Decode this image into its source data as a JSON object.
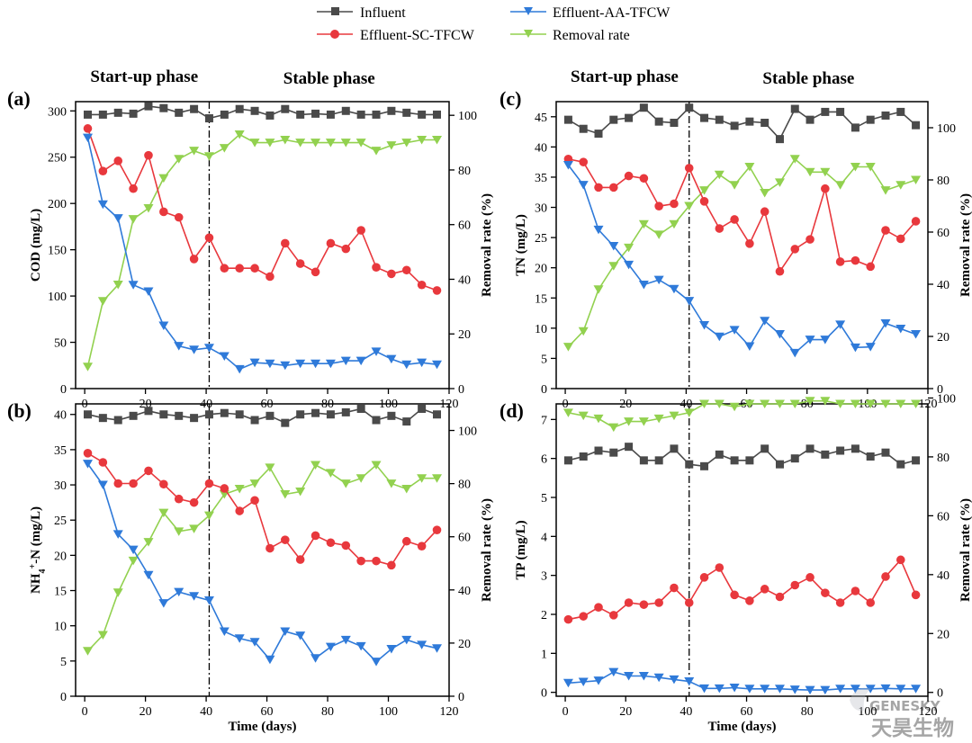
{
  "legend": {
    "influent": "Influent",
    "effluent_aa": "Effluent-AA-TFCW",
    "effluent_sc": "Effluent-SC-TFCW",
    "removal": "Removal rate"
  },
  "colors": {
    "influent": "#4a4a4a",
    "effluent_aa": "#2f7ad9",
    "effluent_sc": "#e8383d",
    "removal": "#92d14f"
  },
  "phases": {
    "startup": "Start-up phase",
    "stable": "Stable phase"
  },
  "phase_boundary_day": 41,
  "watermark": {
    "brand_en": "GENESKY",
    "brand_cn": "天昊生物"
  },
  "chart_data": [
    {
      "panel": "(a)",
      "type": "line",
      "xlabel": "",
      "ylabel": "COD (mg/L)",
      "ylabel_right": "Removal rate (%)",
      "xlim": [
        -3,
        120
      ],
      "xticks": [
        0,
        20,
        40,
        60,
        80,
        100,
        120
      ],
      "xtick_labels": [
        "0",
        "20",
        "40",
        "60",
        "80",
        "100",
        "120"
      ],
      "ylim": [
        0,
        310
      ],
      "yticks": [
        0,
        50,
        100,
        150,
        200,
        250,
        300
      ],
      "ylim_right": [
        0,
        105
      ],
      "yticks_right": [
        0,
        20,
        40,
        60,
        80,
        100
      ],
      "show_top_phases": true,
      "x": [
        1,
        6,
        11,
        16,
        21,
        26,
        31,
        36,
        41,
        46,
        51,
        56,
        61,
        66,
        71,
        76,
        81,
        86,
        91,
        96,
        101,
        106,
        111,
        116
      ],
      "series": [
        {
          "key": "influent",
          "marker": "square",
          "values": [
            296,
            296,
            298,
            297,
            305,
            303,
            298,
            302,
            292,
            296,
            302,
            300,
            295,
            302,
            296,
            297,
            296,
            300,
            296,
            296,
            300,
            298,
            296,
            296
          ]
        },
        {
          "key": "effluent_sc",
          "marker": "circle",
          "values": [
            281,
            235,
            246,
            216,
            252,
            191,
            185,
            140,
            163,
            130,
            130,
            130,
            121,
            157,
            135,
            126,
            157,
            151,
            171,
            131,
            124,
            128,
            112,
            106
          ]
        },
        {
          "key": "effluent_aa",
          "marker": "triangle",
          "values": [
            271,
            199,
            184,
            112,
            105,
            68,
            46,
            42,
            44,
            35,
            21,
            28,
            27,
            25,
            27,
            27,
            27,
            30,
            30,
            40,
            32,
            26,
            28,
            26
          ]
        },
        {
          "key": "removal",
          "marker": "triangle",
          "axis": "right",
          "values": [
            8,
            32,
            38,
            62,
            66,
            77,
            84,
            87,
            85,
            88,
            93,
            90,
            90,
            91,
            90,
            90,
            90,
            90,
            90,
            87,
            89,
            90,
            91,
            91
          ]
        }
      ]
    },
    {
      "panel": "(b)",
      "type": "line",
      "xlabel": "Time (days)",
      "ylabel": "NH4+-N (mg/L)",
      "ylabel_right": "Removal rate (%)",
      "xlim": [
        -3,
        120
      ],
      "xticks": [
        0,
        20,
        40,
        60,
        80,
        100,
        120
      ],
      "xtick_labels": [
        "0",
        "20",
        "40",
        "60",
        "80",
        "100",
        "120"
      ],
      "ylim": [
        0,
        41.5
      ],
      "yticks": [
        0,
        5,
        10,
        15,
        20,
        25,
        30,
        35,
        40
      ],
      "ylim_right": [
        0,
        110
      ],
      "yticks_right": [
        0,
        20,
        40,
        60,
        80,
        100
      ],
      "show_top_phases": false,
      "x": [
        1,
        6,
        11,
        16,
        21,
        26,
        31,
        36,
        41,
        46,
        51,
        56,
        61,
        66,
        71,
        76,
        81,
        86,
        91,
        96,
        101,
        106,
        111,
        116
      ],
      "series": [
        {
          "key": "influent",
          "marker": "square",
          "values": [
            40.0,
            39.5,
            39.2,
            39.8,
            40.5,
            40.0,
            39.8,
            39.5,
            40.0,
            40.2,
            40.0,
            39.2,
            39.8,
            38.8,
            40.0,
            40.2,
            40.0,
            40.3,
            40.8,
            39.2,
            39.8,
            39.0,
            40.8,
            40.0
          ]
        },
        {
          "key": "effluent_sc",
          "marker": "circle",
          "values": [
            34.5,
            33.2,
            30.2,
            30.2,
            32.0,
            30.1,
            28.0,
            27.5,
            30.2,
            29.5,
            26.3,
            27.8,
            21.0,
            22.2,
            19.4,
            22.8,
            21.8,
            21.4,
            19.2,
            19.2,
            18.6,
            22.0,
            21.3,
            23.6
          ]
        },
        {
          "key": "effluent_aa",
          "marker": "triangle",
          "values": [
            33.0,
            30.0,
            23.0,
            20.8,
            17.2,
            13.2,
            14.8,
            14.2,
            13.6,
            9.2,
            8.2,
            7.7,
            5.2,
            9.2,
            8.6,
            5.4,
            7.0,
            8.0,
            7.1,
            4.9,
            6.7,
            8.0,
            7.3,
            6.8
          ]
        },
        {
          "key": "removal",
          "marker": "triangle",
          "axis": "right",
          "values": [
            17,
            23,
            39,
            51,
            58,
            69,
            62,
            63,
            68,
            76,
            78,
            80,
            86,
            76,
            77,
            87,
            84,
            80,
            82,
            87,
            80,
            78,
            82,
            82
          ]
        }
      ]
    },
    {
      "panel": "(c)",
      "type": "line",
      "xlabel": "",
      "ylabel": "TN (mg/L)",
      "ylabel_right": "Removal rate (%)",
      "xlim": [
        -3,
        120
      ],
      "xticks": [
        0,
        20,
        40,
        60,
        80,
        100,
        120
      ],
      "xtick_labels": [
        "0",
        "20",
        "40",
        "60",
        "80",
        "100",
        "120"
      ],
      "ylim": [
        0,
        47.5
      ],
      "yticks": [
        0,
        5,
        10,
        15,
        20,
        25,
        30,
        35,
        40,
        45
      ],
      "ylim_right": [
        0,
        110
      ],
      "yticks_right": [
        0,
        20,
        40,
        60,
        80,
        100
      ],
      "show_top_phases": true,
      "x": [
        1,
        6,
        11,
        16,
        21,
        26,
        31,
        36,
        41,
        46,
        51,
        56,
        61,
        66,
        71,
        76,
        81,
        86,
        91,
        96,
        101,
        106,
        111,
        116
      ],
      "series": [
        {
          "key": "influent",
          "marker": "square",
          "values": [
            44.5,
            43.0,
            42.2,
            44.5,
            44.8,
            46.5,
            44.2,
            44.0,
            46.5,
            44.8,
            44.5,
            43.5,
            44.2,
            44.0,
            41.3,
            46.3,
            44.5,
            45.8,
            45.8,
            43.2,
            44.5,
            45.2,
            45.8,
            43.6
          ]
        },
        {
          "key": "effluent_sc",
          "marker": "circle",
          "values": [
            38.0,
            37.5,
            33.3,
            33.3,
            35.2,
            34.8,
            30.2,
            30.6,
            36.5,
            31.0,
            26.5,
            28.0,
            24.0,
            29.3,
            19.4,
            23.1,
            24.7,
            33.1,
            21.0,
            21.2,
            20.2,
            26.2,
            24.8,
            27.7
          ]
        },
        {
          "key": "effluent_aa",
          "marker": "triangle",
          "values": [
            37.0,
            33.7,
            26.3,
            23.6,
            20.5,
            17.2,
            18.0,
            16.5,
            14.5,
            10.5,
            8.6,
            9.7,
            7.0,
            11.2,
            9.0,
            5.9,
            8.1,
            8.1,
            10.6,
            6.8,
            6.9,
            10.8,
            9.9,
            9.0
          ]
        },
        {
          "key": "removal",
          "marker": "triangle",
          "axis": "right",
          "values": [
            16,
            22,
            38,
            47,
            54,
            63,
            59,
            63,
            70,
            76,
            82,
            78,
            85,
            75,
            79,
            88,
            83,
            83,
            78,
            85,
            85,
            76,
            78,
            80
          ]
        }
      ]
    },
    {
      "panel": "(d)",
      "type": "line",
      "xlabel": "Time (days)",
      "ylabel": "TP (mg/L)",
      "ylabel_right": "Removal rate (%)",
      "xlim": [
        -3,
        120
      ],
      "xticks": [
        0,
        20,
        40,
        60,
        80,
        100,
        120
      ],
      "xtick_labels": [
        "0",
        "20",
        "40",
        "60",
        "80",
        "100",
        "120"
      ],
      "ylim": [
        -0.1,
        7.4
      ],
      "yticks": [
        0,
        1,
        2,
        3,
        4,
        5,
        6,
        7
      ],
      "ylim_right": [
        -1.3,
        98
      ],
      "yticks_right": [
        0,
        20,
        40,
        60,
        80,
        100
      ],
      "show_top_phases": false,
      "x": [
        1,
        6,
        11,
        16,
        21,
        26,
        31,
        36,
        41,
        46,
        51,
        56,
        61,
        66,
        71,
        76,
        81,
        86,
        91,
        96,
        101,
        106,
        111,
        116
      ],
      "series": [
        {
          "key": "influent",
          "marker": "square",
          "values": [
            5.95,
            6.05,
            6.2,
            6.15,
            6.3,
            5.95,
            5.95,
            6.25,
            5.85,
            5.8,
            6.1,
            5.95,
            5.95,
            6.25,
            5.85,
            6.0,
            6.25,
            6.1,
            6.2,
            6.25,
            6.05,
            6.15,
            5.85,
            5.95
          ]
        },
        {
          "key": "effluent_sc",
          "marker": "circle",
          "values": [
            1.87,
            1.95,
            2.18,
            1.98,
            2.3,
            2.25,
            2.3,
            2.68,
            2.3,
            2.95,
            3.2,
            2.5,
            2.35,
            2.65,
            2.45,
            2.75,
            2.95,
            2.55,
            2.3,
            2.6,
            2.3,
            2.97,
            3.4,
            2.5
          ]
        },
        {
          "key": "effluent_aa",
          "marker": "triangle",
          "values": [
            0.24,
            0.27,
            0.3,
            0.52,
            0.42,
            0.42,
            0.38,
            0.33,
            0.28,
            0.1,
            0.1,
            0.12,
            0.09,
            0.09,
            0.09,
            0.07,
            0.06,
            0.06,
            0.09,
            0.09,
            0.09,
            0.1,
            0.09,
            0.09
          ]
        },
        {
          "key": "removal",
          "marker": "triangle",
          "axis": "right",
          "values": [
            95,
            94,
            93,
            90,
            92,
            92,
            93,
            94,
            95,
            98,
            98,
            97,
            98,
            98,
            98,
            98,
            99,
            99,
            98,
            98,
            98,
            98,
            98,
            98
          ]
        }
      ]
    }
  ]
}
